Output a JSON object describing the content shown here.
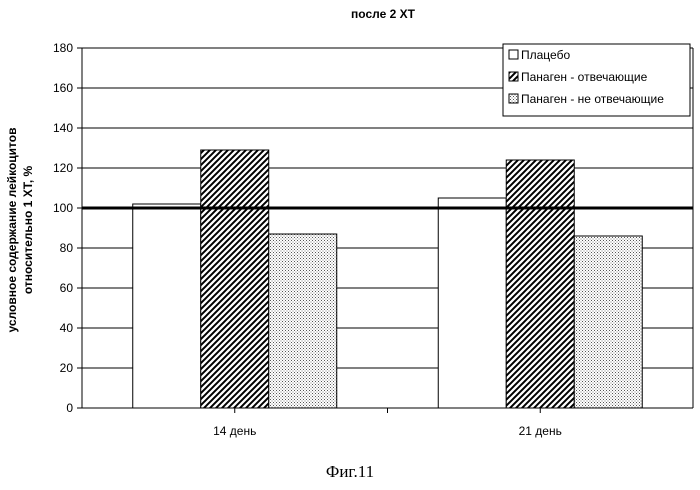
{
  "caption": "Фиг.11",
  "chart_data": {
    "type": "bar",
    "title": "после 2 ХТ",
    "ylabel_lines": [
      "условное содержание лейкоцитов",
      "относительно 1 ХТ, %"
    ],
    "xlabel": "",
    "categories": [
      "14 день",
      "21 день"
    ],
    "series": [
      {
        "name": "Плацебо",
        "values": [
          102,
          105
        ],
        "fill": "white"
      },
      {
        "name": "Панаген - отвечающие",
        "values": [
          129,
          124
        ],
        "fill": "hatch"
      },
      {
        "name": "Панаген - не отвечающие",
        "values": [
          87,
          86
        ],
        "fill": "dots"
      }
    ],
    "ylim": [
      0,
      180
    ],
    "yticks": [
      0,
      20,
      40,
      60,
      80,
      100,
      120,
      140,
      160,
      180
    ],
    "reference_line": 100,
    "grid": true,
    "legend_position": "top-right"
  }
}
